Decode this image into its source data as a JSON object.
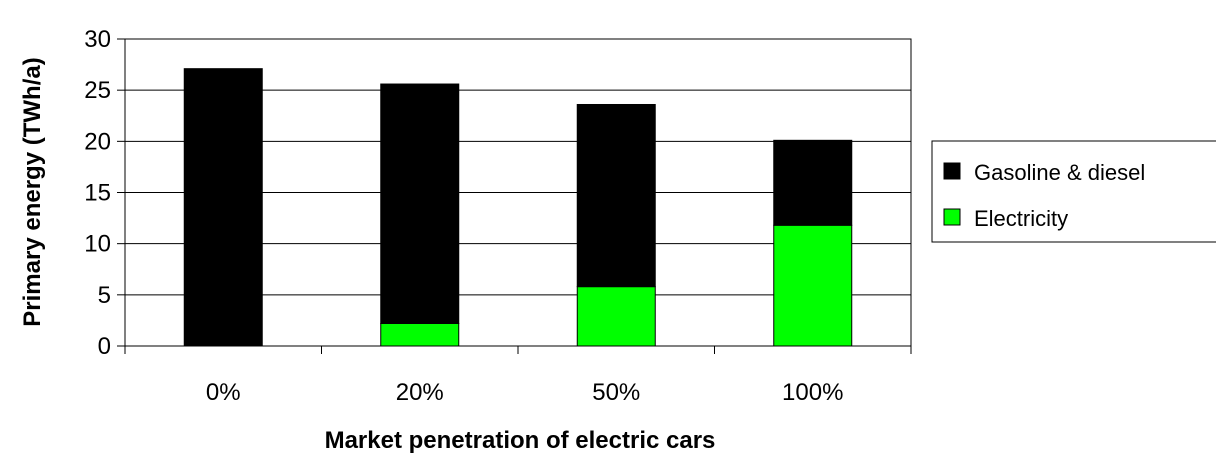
{
  "chart_data": {
    "type": "bar",
    "stacked": true,
    "categories": [
      "0%",
      "20%",
      "50%",
      "100%"
    ],
    "series": [
      {
        "name": "Electricity",
        "color": "#00ff00",
        "values": [
          0,
          2.2,
          5.8,
          11.8
        ]
      },
      {
        "name": "Gasoline & diesel",
        "color": "#000000",
        "values": [
          27.1,
          23.4,
          17.8,
          8.3
        ]
      }
    ],
    "xlabel": "Market penetration of electric cars",
    "ylabel": "Primary energy (TWh/a)",
    "ylim": [
      0,
      30
    ],
    "yticks": [
      "0",
      "5",
      "10",
      "15",
      "20",
      "25",
      "30"
    ],
    "grid": true,
    "legend": {
      "position": "right",
      "entries": [
        "Gasoline & diesel",
        "Electricity"
      ]
    }
  }
}
